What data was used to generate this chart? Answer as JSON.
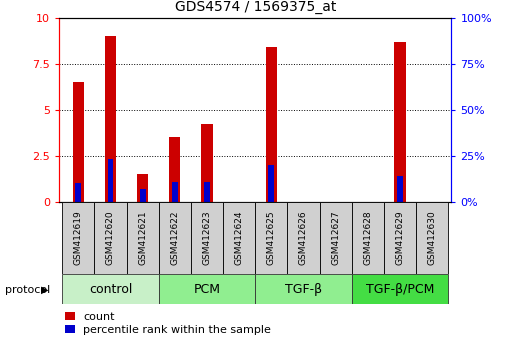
{
  "title": "GDS4574 / 1569375_at",
  "samples": [
    "GSM412619",
    "GSM412620",
    "GSM412621",
    "GSM412622",
    "GSM412623",
    "GSM412624",
    "GSM412625",
    "GSM412626",
    "GSM412627",
    "GSM412628",
    "GSM412629",
    "GSM412630"
  ],
  "count_values": [
    6.5,
    9.0,
    1.5,
    3.5,
    4.2,
    0.0,
    8.4,
    0.0,
    0.0,
    0.0,
    8.7,
    0.0
  ],
  "percentile_values": [
    1.0,
    2.3,
    0.7,
    1.1,
    1.1,
    0.0,
    2.0,
    0.0,
    0.0,
    0.0,
    1.4,
    0.0
  ],
  "groups": [
    {
      "label": "control",
      "start": 0,
      "end": 3,
      "color": "#c8f0c8"
    },
    {
      "label": "PCM",
      "start": 3,
      "end": 6,
      "color": "#90ee90"
    },
    {
      "label": "TGF-β",
      "start": 6,
      "end": 9,
      "color": "#90ee90"
    },
    {
      "label": "TGF-β/PCM",
      "start": 9,
      "end": 12,
      "color": "#44dd44"
    }
  ],
  "ylim": [
    0,
    10
  ],
  "yticks": [
    0,
    2.5,
    5.0,
    7.5,
    10.0
  ],
  "ytick_labels_left": [
    "0",
    "2.5",
    "5",
    "7.5",
    "10"
  ],
  "ytick_labels_right": [
    "0%",
    "25%",
    "50%",
    "75%",
    "100%"
  ],
  "bar_color_red": "#cc0000",
  "bar_color_blue": "#0000cc",
  "red_bar_width": 0.35,
  "blue_bar_width": 0.18,
  "legend_count_label": "count",
  "legend_pct_label": "percentile rank within the sample",
  "protocol_label": "protocol",
  "sample_box_color": "#d0d0d0",
  "title_fontsize": 10,
  "axis_label_fontsize": 8,
  "sample_fontsize": 6.5,
  "group_fontsize": 9,
  "legend_fontsize": 8
}
